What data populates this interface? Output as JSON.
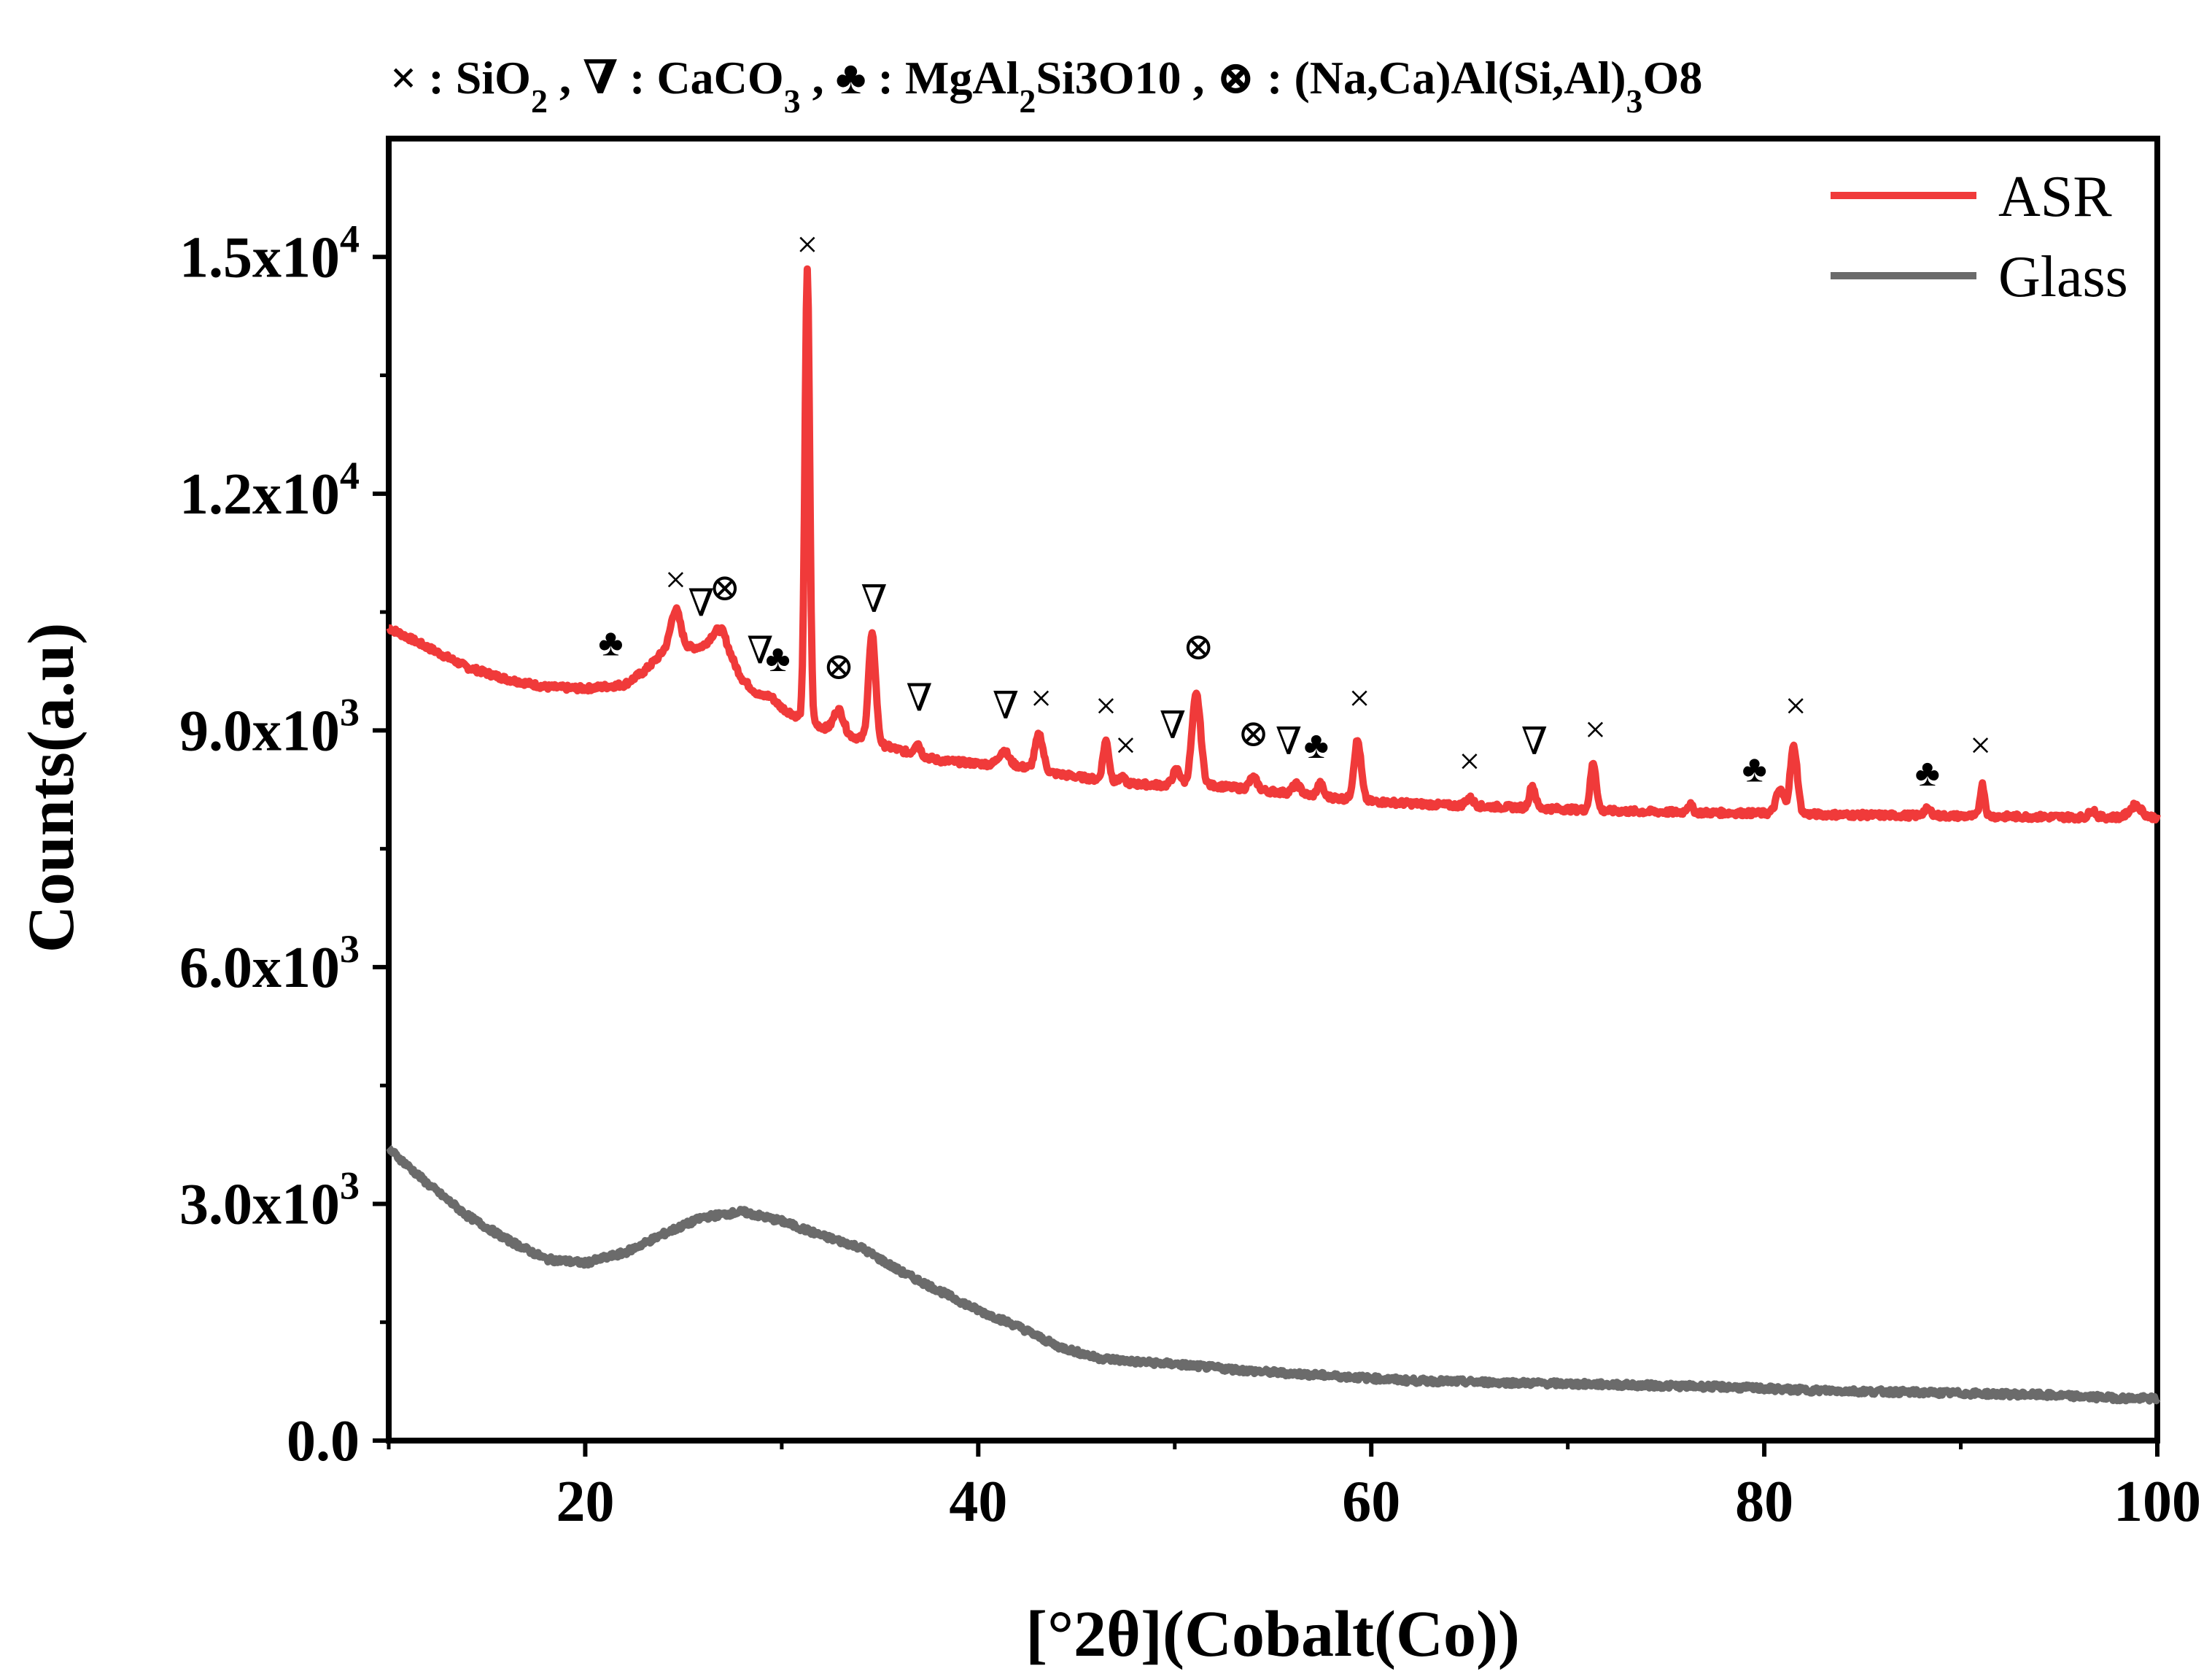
{
  "chart_data": {
    "type": "line",
    "title": "",
    "xlabel": "[°2θ](Cobalt(Co))",
    "ylabel": "Counts(a.u)",
    "xlim": [
      10,
      100
    ],
    "ylim": [
      0,
      16500
    ],
    "x_ticks": [
      20,
      40,
      60,
      80,
      100
    ],
    "y_ticks": [
      {
        "value": 0,
        "mantissa": "0.0",
        "exp": ""
      },
      {
        "value": 3000,
        "mantissa": "3.0x10",
        "exp": "3"
      },
      {
        "value": 6000,
        "mantissa": "6.0x10",
        "exp": "3"
      },
      {
        "value": 9000,
        "mantissa": "9.0x10",
        "exp": "3"
      },
      {
        "value": 12000,
        "mantissa": "1.2x10",
        "exp": "4"
      },
      {
        "value": 15000,
        "mantissa": "1.5x10",
        "exp": "4"
      }
    ],
    "legend_position": "top-right",
    "phase_legend": [
      {
        "symbol": "×",
        "label": "SiO",
        "sub": "2",
        "rest": ""
      },
      {
        "symbol": "∇",
        "label": "CaCO",
        "sub": "3",
        "rest": ""
      },
      {
        "symbol": "♣",
        "label": "MgAl",
        "sub": "2",
        "rest": "Si3O10"
      },
      {
        "symbol": "⊗",
        "label": "(Na,Ca)Al(Si,Al)",
        "sub": "3",
        "rest": "O8"
      }
    ],
    "series": [
      {
        "name": "ASR",
        "color": "#f03a3a",
        "baseline": [
          [
            10,
            10300
          ],
          [
            12,
            10050
          ],
          [
            14,
            9800
          ],
          [
            16,
            9650
          ],
          [
            18,
            9550
          ],
          [
            20,
            9530
          ],
          [
            22,
            9580
          ],
          [
            23,
            9750
          ],
          [
            24,
            10000
          ],
          [
            25,
            10050
          ],
          [
            26,
            10050
          ],
          [
            27,
            10080
          ],
          [
            28,
            9650
          ],
          [
            29,
            9400
          ],
          [
            30,
            9280
          ],
          [
            31,
            9150
          ],
          [
            32,
            9050
          ],
          [
            33,
            8950
          ],
          [
            34,
            8900
          ],
          [
            36,
            8750
          ],
          [
            38,
            8620
          ],
          [
            40,
            8580
          ],
          [
            42,
            8550
          ],
          [
            44,
            8450
          ],
          [
            46,
            8380
          ],
          [
            48,
            8320
          ],
          [
            50,
            8300
          ],
          [
            52,
            8300
          ],
          [
            54,
            8250
          ],
          [
            56,
            8200
          ],
          [
            58,
            8150
          ],
          [
            60,
            8100
          ],
          [
            64,
            8050
          ],
          [
            68,
            8020
          ],
          [
            72,
            7980
          ],
          [
            76,
            7960
          ],
          [
            80,
            7950
          ],
          [
            84,
            7930
          ],
          [
            88,
            7920
          ],
          [
            92,
            7910
          ],
          [
            96,
            7900
          ],
          [
            100,
            7900
          ]
        ],
        "peaks": [
          [
            24.6,
            500,
            0.25
          ],
          [
            26.8,
            200,
            0.4
          ],
          [
            29.4,
            80,
            0.3
          ],
          [
            31.3,
            5700,
            0.12
          ],
          [
            32.9,
            300,
            0.25
          ],
          [
            34.6,
            1350,
            0.18
          ],
          [
            36.9,
            150,
            0.15
          ],
          [
            41.3,
            180,
            0.25
          ],
          [
            43.1,
            450,
            0.2
          ],
          [
            46.5,
            500,
            0.15
          ],
          [
            47.3,
            60,
            0.15
          ],
          [
            50.1,
            200,
            0.2
          ],
          [
            51.1,
            1150,
            0.22
          ],
          [
            54.0,
            150,
            0.2
          ],
          [
            56.2,
            120,
            0.2
          ],
          [
            57.4,
            160,
            0.15
          ],
          [
            59.3,
            750,
            0.18
          ],
          [
            65.0,
            100,
            0.2
          ],
          [
            68.2,
            280,
            0.15
          ],
          [
            71.3,
            600,
            0.15
          ],
          [
            76.2,
            100,
            0.15
          ],
          [
            80.8,
            300,
            0.2
          ],
          [
            81.5,
            850,
            0.18
          ],
          [
            88.3,
            80,
            0.2
          ],
          [
            91.1,
            400,
            0.12
          ],
          [
            96.7,
            100,
            0.15
          ],
          [
            98.9,
            150,
            0.3
          ]
        ]
      },
      {
        "name": "Glass",
        "color": "#6b6b6b",
        "baseline": [
          [
            10,
            3700
          ],
          [
            12,
            3250
          ],
          [
            14,
            2850
          ],
          [
            16,
            2550
          ],
          [
            18,
            2300
          ],
          [
            20,
            2250
          ],
          [
            22,
            2380
          ],
          [
            24,
            2620
          ],
          [
            26,
            2830
          ],
          [
            28,
            2900
          ],
          [
            30,
            2780
          ],
          [
            32,
            2600
          ],
          [
            34,
            2450
          ],
          [
            36,
            2150
          ],
          [
            38,
            1900
          ],
          [
            40,
            1650
          ],
          [
            42,
            1450
          ],
          [
            44,
            1200
          ],
          [
            46,
            1050
          ],
          [
            48,
            1000
          ],
          [
            50,
            970
          ],
          [
            54,
            880
          ],
          [
            58,
            820
          ],
          [
            62,
            760
          ],
          [
            66,
            740
          ],
          [
            70,
            720
          ],
          [
            74,
            700
          ],
          [
            78,
            680
          ],
          [
            82,
            640
          ],
          [
            86,
            620
          ],
          [
            90,
            600
          ],
          [
            94,
            580
          ],
          [
            98,
            540
          ],
          [
            100,
            530
          ]
        ],
        "peaks": []
      }
    ],
    "annotations": [
      {
        "x": 21.3,
        "y": 9950,
        "symbol": "♣"
      },
      {
        "x": 24.6,
        "y": 10750,
        "symbol": "×"
      },
      {
        "x": 25.9,
        "y": 10450,
        "symbol": "∇"
      },
      {
        "x": 27.1,
        "y": 10650,
        "symbol": "⊗"
      },
      {
        "x": 28.9,
        "y": 9850,
        "symbol": "∇"
      },
      {
        "x": 29.8,
        "y": 9750,
        "symbol": "♣"
      },
      {
        "x": 31.3,
        "y": 15000,
        "symbol": "×"
      },
      {
        "x": 32.9,
        "y": 9650,
        "symbol": "⊗"
      },
      {
        "x": 34.7,
        "y": 10500,
        "symbol": "∇"
      },
      {
        "x": 37.0,
        "y": 9250,
        "symbol": "∇"
      },
      {
        "x": 41.4,
        "y": 9150,
        "symbol": "∇"
      },
      {
        "x": 43.2,
        "y": 9250,
        "symbol": "×"
      },
      {
        "x": 46.5,
        "y": 9150,
        "symbol": "×"
      },
      {
        "x": 47.5,
        "y": 8650,
        "symbol": "×"
      },
      {
        "x": 49.9,
        "y": 8900,
        "symbol": "∇"
      },
      {
        "x": 51.2,
        "y": 9900,
        "symbol": "⊗"
      },
      {
        "x": 54.0,
        "y": 8800,
        "symbol": "⊗"
      },
      {
        "x": 55.8,
        "y": 8700,
        "symbol": "∇"
      },
      {
        "x": 57.2,
        "y": 8650,
        "symbol": "♣"
      },
      {
        "x": 59.4,
        "y": 9250,
        "symbol": "×"
      },
      {
        "x": 65.0,
        "y": 8450,
        "symbol": "×"
      },
      {
        "x": 68.3,
        "y": 8700,
        "symbol": "∇"
      },
      {
        "x": 71.4,
        "y": 8850,
        "symbol": "×"
      },
      {
        "x": 79.5,
        "y": 8350,
        "symbol": "♣"
      },
      {
        "x": 81.6,
        "y": 9150,
        "symbol": "×"
      },
      {
        "x": 88.3,
        "y": 8300,
        "symbol": "♣"
      },
      {
        "x": 91.0,
        "y": 8650,
        "symbol": "×"
      }
    ]
  }
}
